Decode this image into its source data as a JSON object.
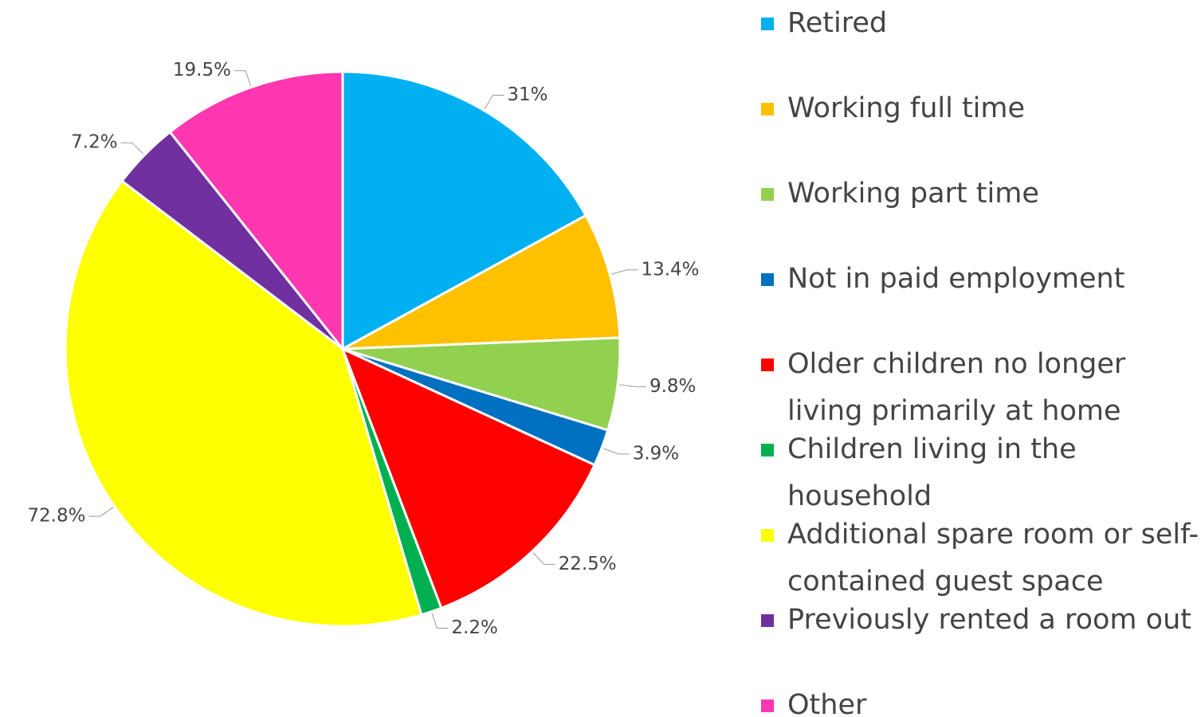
{
  "chart_data": {
    "type": "pie",
    "categories": [
      "Retired",
      "Working full time",
      "Working part time",
      "Not in paid employment",
      "Older children no longer living primarily at home",
      "Children living in the household",
      "Additional spare room or self-contained guest space",
      "Previously rented a room out",
      "Other"
    ],
    "values": [
      31,
      13.4,
      9.8,
      3.9,
      22.5,
      2.2,
      72.8,
      7.2,
      19.5
    ],
    "value_labels": [
      "31%",
      "13.4%",
      "9.8%",
      "3.9%",
      "22.5%",
      "2.2%",
      "72.8%",
      "7.2%",
      "19.5%"
    ],
    "colors": [
      "#00b0f0",
      "#ffc000",
      "#92d050",
      "#0070c0",
      "#ff0000",
      "#00b050",
      "#ffff00",
      "#7030a0",
      "#ff37b0"
    ]
  }
}
